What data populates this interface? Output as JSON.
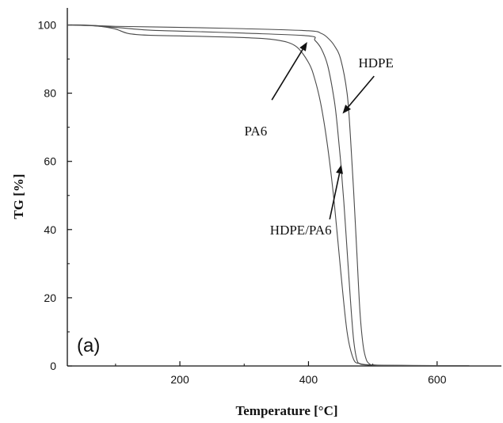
{
  "chart_data": {
    "type": "line",
    "title": "",
    "xlabel": "Temperature [°C]",
    "ylabel": "TG [%]",
    "xlim": [
      25,
      700
    ],
    "ylim": [
      0,
      105
    ],
    "x_ticks": [
      200,
      400,
      600
    ],
    "x_minor_ticks": [
      100,
      300,
      500
    ],
    "y_ticks": [
      0,
      20,
      40,
      60,
      80,
      100
    ],
    "grid": false,
    "panel_label": "(a)",
    "line_color": "#4a4a4a",
    "series": [
      {
        "name": "HDPE",
        "x": [
          25,
          60,
          100,
          200,
          300,
          400,
          420,
          430,
          440,
          450,
          460,
          465,
          470,
          475,
          480,
          485,
          490,
          495,
          500,
          520,
          600,
          650
        ],
        "y": [
          100,
          99.9,
          99.6,
          99.3,
          98.9,
          98.3,
          97.5,
          96.2,
          94.0,
          90.0,
          80.0,
          68.0,
          52.0,
          34.0,
          16.0,
          6.0,
          1.8,
          0.6,
          0.3,
          0.2,
          0.1,
          0.1
        ]
      },
      {
        "name": "PA6",
        "x": [
          25,
          50,
          80,
          100,
          120,
          150,
          200,
          300,
          350,
          380,
          400,
          410,
          420,
          430,
          440,
          450,
          460,
          470,
          480,
          490,
          500,
          520,
          600
        ],
        "y": [
          100,
          100,
          99.5,
          98.8,
          97.5,
          97.0,
          96.8,
          96.3,
          95.6,
          93.8,
          89.0,
          84.0,
          76.0,
          64.0,
          48.0,
          28.0,
          10.0,
          2.0,
          0.7,
          0.4,
          0.3,
          0.2,
          0.1
        ]
      },
      {
        "name": "HDPE/PA6",
        "x": [
          25,
          60,
          100,
          150,
          200,
          300,
          400,
          410,
          420,
          430,
          440,
          445,
          450,
          455,
          460,
          465,
          470,
          475,
          480,
          490,
          500,
          520,
          600
        ],
        "y": [
          100,
          99.8,
          99.3,
          98.5,
          98.2,
          97.6,
          96.8,
          95.5,
          93.0,
          88.0,
          78.0,
          70.0,
          60.0,
          48.0,
          34.0,
          20.0,
          8.0,
          2.0,
          0.6,
          0.3,
          0.2,
          0.1,
          0.1
        ]
      }
    ],
    "annotations": [
      {
        "text": "PA6",
        "label_x": 318,
        "label_y": 69,
        "arrow_from": [
          343,
          78
        ],
        "arrow_to": [
          398,
          95
        ]
      },
      {
        "text": "HDPE",
        "label_x": 505,
        "label_y": 89,
        "arrow_from": [
          502,
          85
        ],
        "arrow_to": [
          453,
          74
        ]
      },
      {
        "text": "HDPE/PA6",
        "label_x": 388,
        "label_y": 40,
        "arrow_from": [
          433,
          43
        ],
        "arrow_to": [
          451,
          59
        ]
      }
    ]
  }
}
